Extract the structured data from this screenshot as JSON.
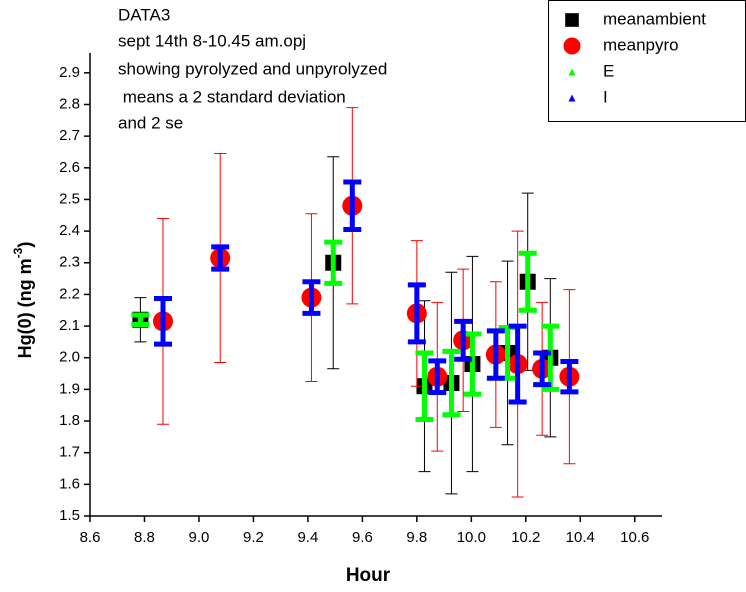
{
  "chart_data": {
    "type": "scatter",
    "annotation_lines": [
      "DATA3",
      "sept 14th 8-10.45 am.opj",
      "showing pyrolyzed and unpyrolyzed",
      " means a 2 standard deviation",
      "and 2 se"
    ],
    "x_label": "Hour",
    "y_label": {
      "text": "Hg(0) (ng m",
      "sup": "-3",
      "end": ")"
    },
    "xlim": [
      8.6,
      10.7
    ],
    "ylim": [
      1.5,
      2.95
    ],
    "xticks": [
      8.6,
      8.8,
      {
        "value": 9.0,
        "label": "9.0"
      },
      9.2,
      9.4,
      9.6,
      9.8,
      {
        "value": 10.0,
        "label": "10.0"
      },
      10.2,
      10.4,
      10.6
    ],
    "yticks": [
      1.5,
      1.6,
      1.7,
      1.8,
      1.9,
      {
        "value": 2.0,
        "label": "2.0"
      },
      2.1,
      2.2,
      2.3,
      2.4,
      2.5,
      2.6,
      2.7,
      2.8,
      2.9
    ],
    "legend_position": "top-right",
    "series": [
      {
        "name": "meanambient",
        "color": "#000000",
        "marker": "square",
        "errorbar_style": "thin",
        "x": [
          8.785,
          9.493,
          9.828,
          9.927,
          10.004,
          10.133,
          10.207,
          10.29
        ],
        "values": [
          2.12,
          2.3,
          1.91,
          1.92,
          1.98,
          2.015,
          2.24,
          2.0
        ],
        "errors": [
          0.07,
          0.335,
          0.27,
          0.35,
          0.34,
          0.29,
          0.28,
          0.25
        ]
      },
      {
        "name": "meanpyro",
        "color": "#ff0000",
        "marker": "circle",
        "errorbar_style": "thin",
        "x": [
          8.868,
          9.078,
          9.413,
          9.563,
          9.8,
          9.875,
          9.97,
          10.09,
          10.17,
          10.26,
          10.36
        ],
        "values": [
          2.115,
          2.315,
          2.19,
          2.48,
          2.14,
          1.94,
          2.055,
          2.01,
          1.98,
          1.965,
          1.94
        ],
        "errors": [
          0.325,
          0.33,
          0.265,
          0.31,
          0.23,
          0.235,
          0.225,
          0.23,
          0.42,
          0.21,
          0.275
        ]
      },
      {
        "name": "E",
        "color": "#00ff00",
        "marker": "triangle",
        "errorbar_style": "thick",
        "x": [
          8.785,
          9.493,
          9.828,
          9.927,
          10.004,
          10.133,
          10.207,
          10.29
        ],
        "values": [
          2.12,
          2.3,
          1.91,
          1.92,
          1.98,
          2.015,
          2.24,
          2.0
        ],
        "errors": [
          0.015,
          0.065,
          0.105,
          0.1,
          0.095,
          0.08,
          0.09,
          0.1
        ]
      },
      {
        "name": "I",
        "color": "#0000ff",
        "marker": "triangle",
        "errorbar_style": "thick",
        "x": [
          8.868,
          9.078,
          9.413,
          9.563,
          9.8,
          9.875,
          9.97,
          10.09,
          10.17,
          10.26,
          10.36
        ],
        "values": [
          2.115,
          2.315,
          2.19,
          2.48,
          2.14,
          1.94,
          2.055,
          2.01,
          1.98,
          1.965,
          1.94
        ],
        "errors": [
          0.072,
          0.035,
          0.05,
          0.075,
          0.09,
          0.05,
          0.06,
          0.075,
          0.12,
          0.05,
          0.048
        ]
      }
    ]
  }
}
